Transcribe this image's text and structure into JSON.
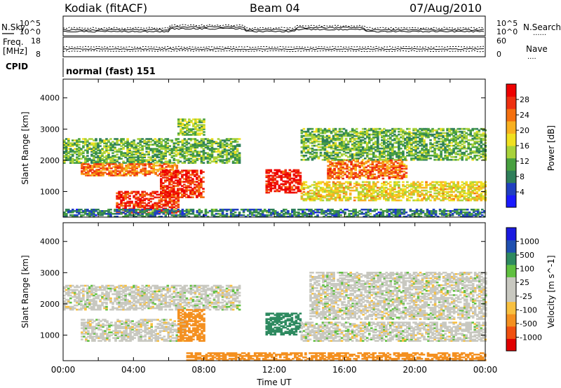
{
  "header": {
    "station": "Kodiak (fitACF)",
    "beam": "Beam 04",
    "date": "07/Aug/2010"
  },
  "side_labels": {
    "nsky": "N.Sky",
    "nsearch": "N.Search",
    "freq": "Freq.",
    "freq_unit": "[MHz]",
    "nave": "Nave",
    "cpid": "CPID",
    "nsearch_dots": "......",
    "nave_dots": "...."
  },
  "strips": {
    "noise_left_ticks": [
      "10^5",
      "10^0"
    ],
    "noise_right_ticks": [
      "10^5",
      "10^0"
    ],
    "freq_left_ticks": [
      "18",
      "8"
    ],
    "freq_right_ticks": [
      "60",
      "0"
    ],
    "cpid_text": "normal (fast) 151"
  },
  "colors": {
    "power_scale": [
      "#1a1aff",
      "#2040c0",
      "#2f7f5a",
      "#48a040",
      "#a8d23a",
      "#f0e020",
      "#f8b020",
      "#f47010",
      "#ee3010",
      "#ee0000"
    ],
    "velocity_scale": [
      "#e00000",
      "#f05010",
      "#f49020",
      "#f8c040",
      "#c8c8c0",
      "#c8c8c0",
      "#60c040",
      "#2e8a60",
      "#2050b0",
      "#1a1ae0"
    ]
  },
  "chart_data": [
    {
      "type": "heatmap",
      "name": "power",
      "xlabel": "Time UT",
      "ylabel": "Slant Range [km]",
      "xlim": [
        "00:00",
        "24:00"
      ],
      "ylim": [
        180,
        4600
      ],
      "x_ticks": [
        "00:00",
        "04:00",
        "08:00",
        "12:00",
        "16:00",
        "20:00",
        "00:00"
      ],
      "y_ticks": [
        1000,
        2000,
        3000,
        4000
      ],
      "colorbar": {
        "label": "Power [dB]",
        "ticks": [
          4,
          8,
          12,
          16,
          20,
          24,
          28
        ],
        "range": [
          0,
          32
        ]
      },
      "features": [
        {
          "t_start": 0.0,
          "t_end": 10.0,
          "r_low": 1900,
          "r_high": 2700,
          "value": 12
        },
        {
          "t_start": 1.0,
          "t_end": 6.5,
          "r_low": 1500,
          "r_high": 1900,
          "value": 24
        },
        {
          "t_start": 5.5,
          "t_end": 8.0,
          "r_low": 800,
          "r_high": 1700,
          "value": 28
        },
        {
          "t_start": 3.0,
          "t_end": 6.5,
          "r_low": 300,
          "r_high": 1000,
          "value": 28
        },
        {
          "t_start": 6.5,
          "t_end": 8.0,
          "r_low": 2800,
          "r_high": 3300,
          "value": 14
        },
        {
          "t_start": 11.5,
          "t_end": 13.5,
          "r_low": 950,
          "r_high": 1700,
          "value": 30
        },
        {
          "t_start": 13.5,
          "t_end": 24.0,
          "r_low": 700,
          "r_high": 1300,
          "value": 18
        },
        {
          "t_start": 15.0,
          "t_end": 19.5,
          "r_low": 1400,
          "r_high": 2000,
          "value": 24
        },
        {
          "t_start": 13.5,
          "t_end": 24.0,
          "r_low": 2000,
          "r_high": 3000,
          "value": 12
        },
        {
          "t_start": 0.0,
          "t_end": 24.0,
          "r_low": 180,
          "r_high": 450,
          "value": 8
        }
      ]
    },
    {
      "type": "heatmap",
      "name": "velocity",
      "xlabel": "Time UT",
      "ylabel": "Slant Range [km]",
      "xlim": [
        "00:00",
        "24:00"
      ],
      "ylim": [
        180,
        4600
      ],
      "x_ticks": [
        "00:00",
        "04:00",
        "08:00",
        "12:00",
        "16:00",
        "20:00",
        "00:00"
      ],
      "y_ticks": [
        1000,
        2000,
        3000,
        4000
      ],
      "colorbar": {
        "label": "Velocity [m s^-1]",
        "ticks": [
          1000,
          500,
          100,
          25,
          -25,
          -100,
          -500,
          -1000
        ]
      },
      "features": [
        {
          "t_start": 0.0,
          "t_end": 10.0,
          "r_low": 1800,
          "r_high": 2600,
          "value": 0
        },
        {
          "t_start": 1.0,
          "t_end": 7.0,
          "r_low": 800,
          "r_high": 1500,
          "value": 0
        },
        {
          "t_start": 6.5,
          "t_end": 8.0,
          "r_low": 800,
          "r_high": 1800,
          "value": -300
        },
        {
          "t_start": 11.5,
          "t_end": 13.5,
          "r_low": 1000,
          "r_high": 1700,
          "value": 200
        },
        {
          "t_start": 13.5,
          "t_end": 24.0,
          "r_low": 800,
          "r_high": 1400,
          "value": 0
        },
        {
          "t_start": 14.0,
          "t_end": 24.0,
          "r_low": 1500,
          "r_high": 3000,
          "value": 0
        },
        {
          "t_start": 7.0,
          "t_end": 24.0,
          "r_low": 180,
          "r_high": 450,
          "value": -150
        }
      ]
    }
  ]
}
